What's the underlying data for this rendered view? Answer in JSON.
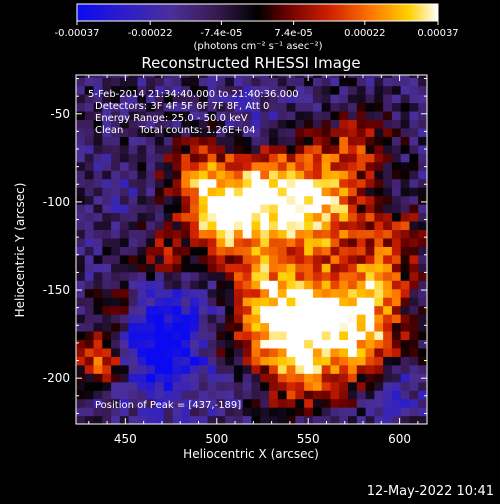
{
  "chart_data": {
    "type": "heatmap",
    "title": "Reconstructed RHESSI Image",
    "xlabel": "Heliocentric X (arcsec)",
    "ylabel": "Heliocentric Y (arcsec)",
    "xlim": [
      423,
      615
    ],
    "ylim": [
      -226,
      -28
    ],
    "x_ticks": [
      450,
      500,
      550,
      600
    ],
    "x_tick_labels": [
      "450",
      "500",
      "550",
      "600"
    ],
    "y_ticks": [
      -50,
      -100,
      -150,
      -200
    ],
    "y_tick_labels": [
      "-50",
      "-100",
      "-150",
      "-200"
    ],
    "colorbar": {
      "range": [
        -0.00037,
        0.00037
      ],
      "tick_values": [
        -0.00037,
        -0.00022,
        -7.4e-05,
        7.4e-05,
        0.00022,
        0.00037
      ],
      "tick_labels": [
        "-0.00037",
        "-0.00022",
        "-7.4e-05",
        "7.4e-05",
        "0.00022",
        "0.00037"
      ],
      "units": "(photons cm⁻² s⁻¹ asec⁻²)",
      "position": "top"
    },
    "annotations": [
      "5-Feb-2014 21:34:40.000 to 21:40:36.000",
      "Detectors: 3F 4F 5F 6F 7F 8F, Att 0",
      "Energy Range: 25.0 - 50.0 keV",
      "Clean     Total counts: 1.26E+04"
    ],
    "peak_label": "Position of Peak = [437,-189]",
    "peak_position": [
      437,
      -189
    ],
    "grid": false,
    "colormap": "rainbow-blue-red-yellow-white"
  },
  "footer": {
    "timestamp": "12-May-2022 10:41"
  },
  "colors": {
    "background": "#000000",
    "foreground": "#ffffff"
  }
}
